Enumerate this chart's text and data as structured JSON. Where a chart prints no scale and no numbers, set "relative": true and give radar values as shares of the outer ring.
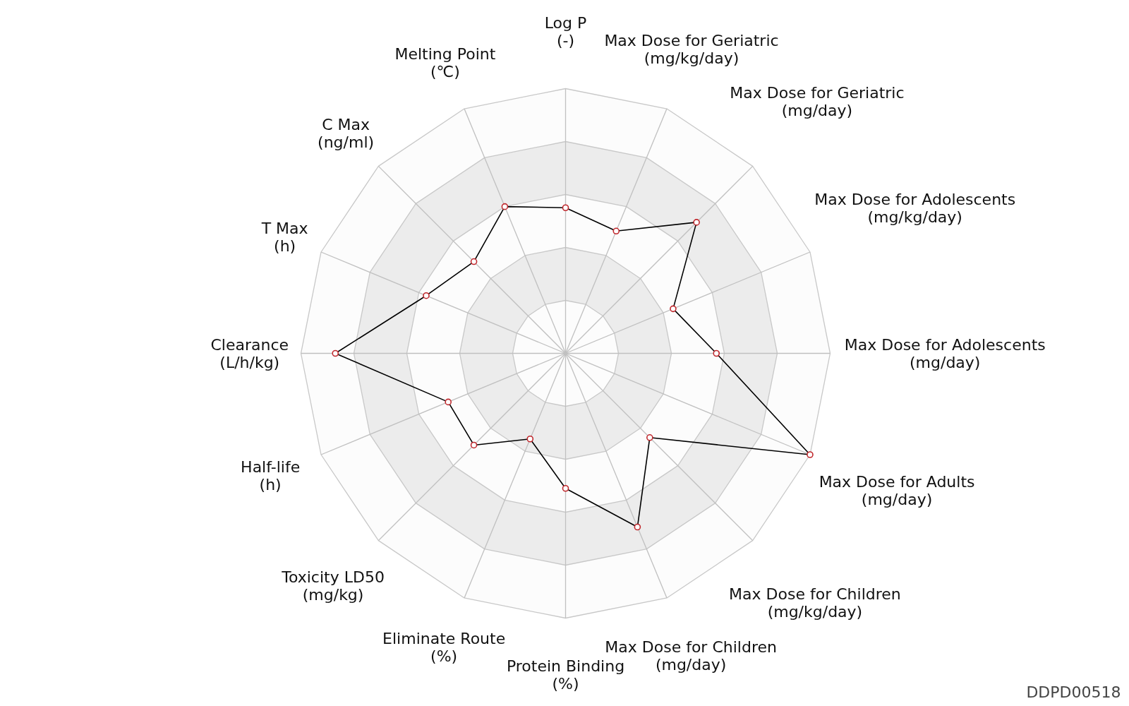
{
  "chart_data": {
    "type": "radar",
    "relative": true,
    "categories": [
      "Log P\n(-)",
      "Max Dose for Geriatric\n(mg/kg/day)",
      "Max Dose for Geriatric\n(mg/day)",
      "Max Dose for Adolescents\n(mg/kg/day)",
      "Max Dose for Adolescents\n(mg/day)",
      "Max Dose for Adults\n(mg/day)",
      "Max Dose for Children\n(mg/kg/day)",
      "Max Dose for Children\n(mg/day)",
      "Protein Binding\n(%)",
      "Eliminate Route\n(%)",
      "Toxicity LD50\n(mg/kg)",
      "Half-life\n(h)",
      "Clearance\n(L/h/kg)",
      "T Max\n(h)",
      "C Max\n(ng/ml)",
      "Melting Point\n(℃)"
    ],
    "series": [
      {
        "color": "#000000",
        "values": [
          0.55,
          0.5,
          0.7,
          0.44,
          0.57,
          1.0,
          0.45,
          0.71,
          0.51,
          0.35,
          0.49,
          0.48,
          0.87,
          0.57,
          0.49,
          0.6
        ]
      }
    ],
    "marker": "circle",
    "line_style": "solid",
    "annotations": [
      "DDPD00518"
    ]
  }
}
